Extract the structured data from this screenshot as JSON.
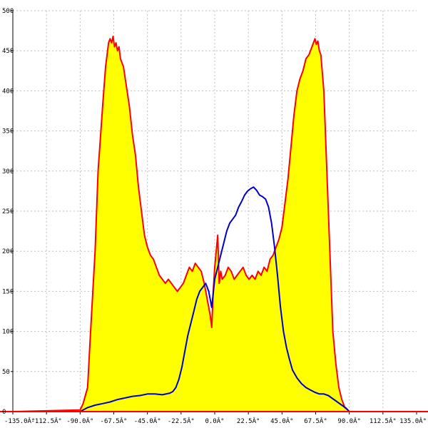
{
  "chart_data": {
    "type": "area",
    "title": "",
    "xlabel": "",
    "ylabel": "",
    "xlim": [
      -135,
      135
    ],
    "ylim": [
      0,
      500
    ],
    "grid": true,
    "x_ticks": [
      -135,
      -112.5,
      -90,
      -67.5,
      -45,
      -22.5,
      0,
      22.5,
      45,
      67.5,
      90,
      112.5,
      135
    ],
    "x_tick_labels": [
      "-135.0Â°",
      "-112.5Â°",
      "-90.0Â°",
      "-67.5Â°",
      "-45.0Â°",
      "-22.5Â°",
      "0.0Â°",
      "22.5Â°",
      "45.0Â°",
      "67.5Â°",
      "90.0Â°",
      "112.5Â°",
      "135.0Â°"
    ],
    "y_ticks": [
      0,
      50,
      100,
      150,
      200,
      250,
      300,
      350,
      400,
      450,
      500
    ],
    "y_tick_labels": [
      "0",
      "50",
      "100",
      "150",
      "200",
      "250",
      "300",
      "350",
      "400",
      "450",
      "500"
    ],
    "colors": {
      "fill": "#ffff00",
      "series_a": "#ff0000",
      "series_b": "#0000cc",
      "grid": "#c0c0c0",
      "axis": "#000000"
    },
    "series": [
      {
        "color": "#ff0000",
        "filled": true,
        "x": [
          -135,
          -90,
          -88,
          -85,
          -83,
          -80,
          -78,
          -75,
          -73,
          -71,
          -70,
          -69,
          -68,
          -67,
          -66,
          -65,
          -64,
          -63,
          -61,
          -59,
          -57,
          -55,
          -53,
          -51,
          -49,
          -47,
          -45,
          -43,
          -41,
          -39,
          -37,
          -35,
          -33,
          -31,
          -29,
          -27,
          -25,
          -23,
          -21,
          -19,
          -17,
          -15,
          -13,
          -11,
          -9,
          -7,
          -5,
          -3,
          -2,
          -1,
          0,
          1,
          2,
          3,
          4,
          5,
          7,
          9,
          11,
          13,
          15,
          17,
          19,
          21,
          23,
          25,
          27,
          29,
          31,
          33,
          35,
          37,
          39,
          41,
          43,
          45,
          47,
          49,
          51,
          53,
          55,
          57,
          59,
          61,
          63,
          65,
          66,
          67,
          68,
          69,
          70,
          71,
          73,
          75,
          77,
          79,
          81,
          83,
          85,
          87,
          89,
          90,
          135
        ],
        "y": [
          0,
          2,
          10,
          30,
          100,
          200,
          300,
          380,
          430,
          460,
          465,
          460,
          468,
          455,
          460,
          450,
          455,
          440,
          430,
          405,
          380,
          345,
          320,
          280,
          250,
          220,
          205,
          195,
          190,
          180,
          170,
          165,
          160,
          165,
          160,
          155,
          150,
          155,
          160,
          170,
          180,
          175,
          185,
          180,
          175,
          160,
          140,
          120,
          105,
          150,
          180,
          200,
          220,
          160,
          175,
          165,
          170,
          180,
          175,
          165,
          170,
          175,
          180,
          170,
          165,
          170,
          165,
          175,
          170,
          180,
          175,
          190,
          195,
          205,
          215,
          230,
          260,
          290,
          330,
          370,
          400,
          415,
          425,
          440,
          445,
          455,
          460,
          465,
          458,
          462,
          450,
          445,
          400,
          300,
          200,
          100,
          60,
          30,
          15,
          5,
          2,
          0,
          0
        ]
      },
      {
        "color": "#0000cc",
        "filled": false,
        "x": [
          -90,
          -85,
          -80,
          -75,
          -70,
          -65,
          -60,
          -55,
          -50,
          -45,
          -40,
          -35,
          -30,
          -28,
          -26,
          -24,
          -22,
          -20,
          -18,
          -16,
          -14,
          -12,
          -10,
          -8,
          -6,
          -4,
          -2,
          0,
          2,
          4,
          6,
          8,
          10,
          12,
          14,
          16,
          18,
          20,
          22,
          24,
          26,
          28,
          30,
          32,
          34,
          36,
          38,
          40,
          42,
          44,
          46,
          48,
          50,
          52,
          55,
          58,
          61,
          64,
          67,
          70,
          73,
          76,
          79,
          82,
          85,
          88,
          90
        ],
        "y": [
          0,
          5,
          8,
          10,
          12,
          15,
          17,
          19,
          20,
          22,
          22,
          21,
          23,
          25,
          30,
          40,
          55,
          75,
          95,
          110,
          125,
          140,
          150,
          155,
          160,
          150,
          130,
          165,
          180,
          195,
          210,
          225,
          235,
          240,
          245,
          255,
          262,
          270,
          275,
          278,
          280,
          276,
          270,
          268,
          265,
          255,
          235,
          205,
          170,
          130,
          100,
          80,
          65,
          52,
          42,
          35,
          30,
          27,
          24,
          22,
          22,
          20,
          16,
          12,
          8,
          4,
          0
        ]
      }
    ]
  }
}
